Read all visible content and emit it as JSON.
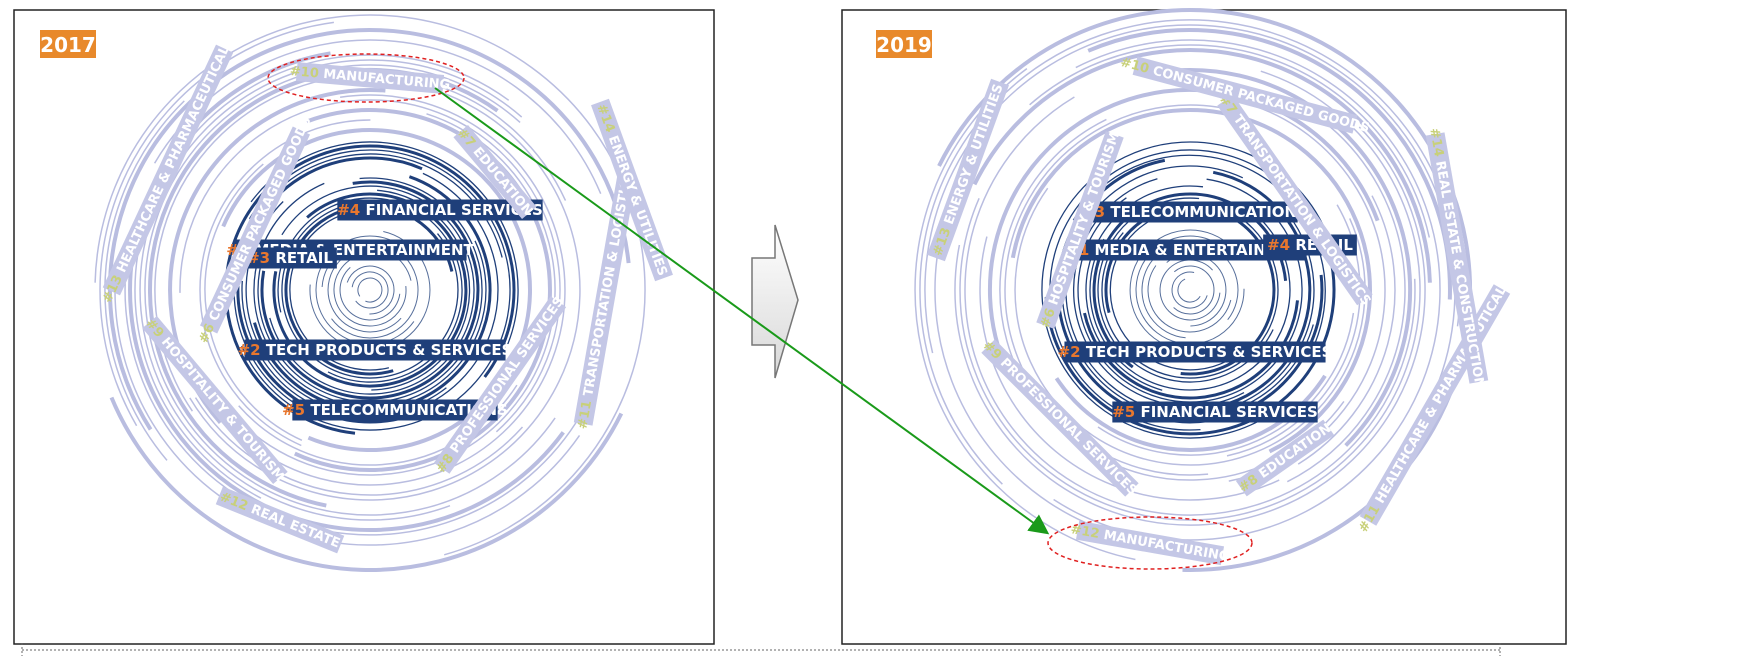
{
  "panels": [
    {
      "year": "2017",
      "labels": [
        {
          "rank": "#1",
          "name": "MEDIA & ENTERTAINMENT",
          "tier": "dark"
        },
        {
          "rank": "#2",
          "name": "TECH PRODUCTS & SERVICES",
          "tier": "dark"
        },
        {
          "rank": "#3",
          "name": "RETAIL",
          "tier": "dark"
        },
        {
          "rank": "#4",
          "name": "FINANCIAL SERVICES",
          "tier": "dark"
        },
        {
          "rank": "#5",
          "name": "TELECOMMUNICATIONS",
          "tier": "dark"
        },
        {
          "rank": "#6",
          "name": "CONSUMER PACKAGED GOODS",
          "tier": "light"
        },
        {
          "rank": "#7",
          "name": "EDUCATION",
          "tier": "light"
        },
        {
          "rank": "#8",
          "name": "PROFESSIONAL SERVICES",
          "tier": "light"
        },
        {
          "rank": "#9",
          "name": "HOSPITALITY & TOURISM",
          "tier": "light"
        },
        {
          "rank": "#10",
          "name": "MANUFACTURING",
          "tier": "light"
        },
        {
          "rank": "#11",
          "name": "TRANSPORTATION & LOGISTICS",
          "tier": "light"
        },
        {
          "rank": "#12",
          "name": "REAL ESTATE",
          "tier": "light"
        },
        {
          "rank": "#13",
          "name": "HEALTHCARE & PHARMACEUTICALS",
          "tier": "light"
        },
        {
          "rank": "#14",
          "name": "ENERGY & UTILITIES",
          "tier": "light"
        }
      ]
    },
    {
      "year": "2019",
      "labels": [
        {
          "rank": "#1",
          "name": "MEDIA & ENTERTAINMENT",
          "tier": "dark"
        },
        {
          "rank": "#2",
          "name": "TECH PRODUCTS & SERVICES",
          "tier": "dark"
        },
        {
          "rank": "#3",
          "name": "TELECOMMUNICATIONS",
          "tier": "dark"
        },
        {
          "rank": "#4",
          "name": "RETAIL",
          "tier": "dark"
        },
        {
          "rank": "#5",
          "name": "FINANCIAL SERVICES",
          "tier": "dark"
        },
        {
          "rank": "#6",
          "name": "HOSPITALITY & TOURISM",
          "tier": "light"
        },
        {
          "rank": "#7",
          "name": "TRANSPORTATION & LOGISTICS",
          "tier": "light"
        },
        {
          "rank": "#8",
          "name": "EDUCATION",
          "tier": "light"
        },
        {
          "rank": "#9",
          "name": "PROFESSIONAL SERVICES",
          "tier": "light"
        },
        {
          "rank": "#10",
          "name": "CONSUMER PACKAGED GOODS",
          "tier": "light"
        },
        {
          "rank": "#11",
          "name": "HEALTHCARE & PHARMACEUTICALS",
          "tier": "light"
        },
        {
          "rank": "#12",
          "name": "MANUFACTURING",
          "tier": "light"
        },
        {
          "rank": "#13",
          "name": "ENERGY & UTILITIES",
          "tier": "light"
        },
        {
          "rank": "#14",
          "name": "REAL ESTATE & CONSTRUCTION",
          "tier": "light"
        }
      ]
    }
  ],
  "highlight": {
    "from_year": "2017",
    "to_year": "2019",
    "industry": "MANUFACTURING"
  },
  "colors": {
    "year_badge": "#e8892b",
    "rank_dark": "#e8772e",
    "rank_light": "#c8d07a",
    "dark_ring": "#1f3f7a",
    "dark_label_bg": "#1f3f7a",
    "light_ring": "#b9bde0",
    "light_label_bg": "#c4c7e6",
    "highlight_ellipse": "#e02020",
    "arrow": "#1a9a1a",
    "chevron_fill": "#eeeeee",
    "chevron_stroke": "#777777"
  }
}
